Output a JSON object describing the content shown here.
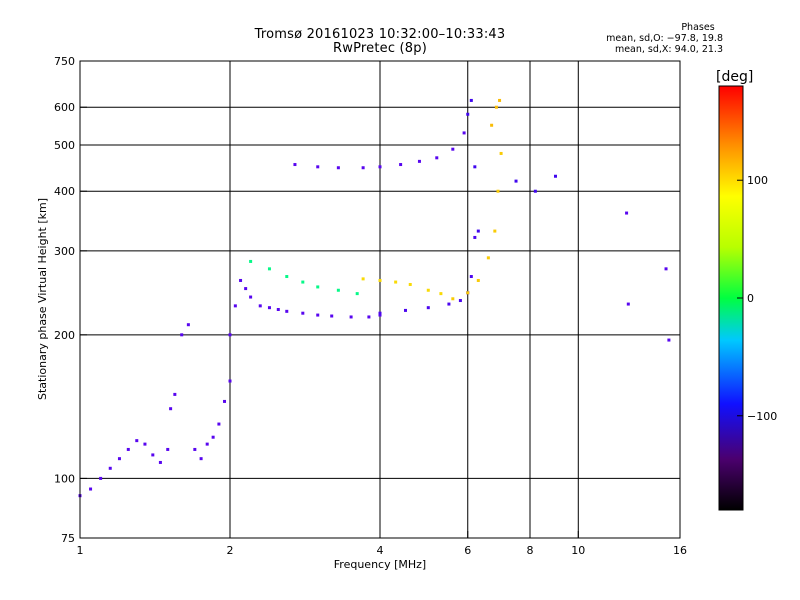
{
  "header": {
    "title_line1": "Tromsø 20161023 10:32:00–10:33:43",
    "title_line2": "RwPretec (8p)"
  },
  "stats": {
    "heading": "Phases",
    "line_o": "mean, sd,O: −97.8, 19.8",
    "line_x": "mean, sd,X:  94.0, 21.3"
  },
  "colorbar": {
    "unit": "[deg]",
    "tick_labels": [
      "100",
      "0",
      "−100"
    ],
    "tick_values": [
      100,
      0,
      -100
    ],
    "range": [
      -180,
      180
    ],
    "colormap": "rainbow"
  },
  "chart_data": {
    "type": "scatter",
    "title": "Tromsø 20161023 10:32:00–10:33:43",
    "subtitle": "RwPretec (8p)",
    "xlabel": "Frequency [MHz]",
    "ylabel": "Stationary phase Virtual Height [km]",
    "x_scale": "log",
    "y_scale": "log",
    "xlim": [
      1,
      16
    ],
    "ylim": [
      75,
      750
    ],
    "x_ticks": [
      1,
      2,
      4,
      6,
      8,
      10,
      16
    ],
    "x_tick_labels": [
      "1",
      "2",
      "4",
      "6",
      "8",
      "10",
      "16"
    ],
    "y_ticks": [
      75,
      100,
      200,
      300,
      400,
      500,
      600,
      750
    ],
    "y_tick_labels": [
      "75",
      "100",
      "200",
      "300",
      "400",
      "500",
      "600",
      "750"
    ],
    "grid": true,
    "color_encodes": "phase [deg]",
    "traces": [
      {
        "x": [
          1.0,
          1.05,
          1.1,
          1.15,
          1.2,
          1.25,
          1.3,
          1.35,
          1.4,
          1.45,
          1.5,
          1.52,
          1.55,
          1.6,
          1.65,
          1.7,
          1.75,
          1.8,
          1.85,
          1.9,
          1.95,
          2.0
        ],
        "y": [
          92,
          95,
          100,
          105,
          110,
          115,
          120,
          118,
          112,
          108,
          115,
          140,
          150,
          200,
          210,
          115,
          110,
          118,
          122,
          130,
          145,
          160
        ],
        "phase": -110
      },
      {
        "x": [
          2.0,
          2.05,
          2.1,
          2.15,
          2.2,
          2.3,
          2.4,
          2.5,
          2.6,
          2.8,
          3.0,
          3.2,
          3.5,
          3.8,
          4.0
        ],
        "y": [
          200,
          230,
          260,
          250,
          240,
          230,
          228,
          226,
          224,
          222,
          220,
          219,
          218,
          218,
          220
        ],
        "phase": -110
      },
      {
        "x": [
          2.2,
          2.4,
          2.6,
          2.8,
          3.0,
          3.3,
          3.6
        ],
        "y": [
          285,
          275,
          265,
          258,
          252,
          248,
          244
        ],
        "phase": -55
      },
      {
        "x": [
          4.0,
          4.5,
          5.0,
          5.5,
          5.8,
          6.0,
          6.1,
          6.2
        ],
        "y": [
          222,
          225,
          228,
          232,
          236,
          245,
          265,
          320
        ],
        "phase": -105
      },
      {
        "x": [
          3.7,
          4.0,
          4.3,
          4.6,
          5.0,
          5.3
        ],
        "y": [
          262,
          260,
          258,
          255,
          248,
          244
        ],
        "phase": 110
      },
      {
        "x": [
          2.7,
          3.0,
          3.3,
          3.7,
          4.0,
          4.4,
          4.8,
          5.2,
          5.6,
          5.9
        ],
        "y": [
          455,
          450,
          448,
          448,
          450,
          455,
          462,
          470,
          490,
          530
        ],
        "phase": -110
      },
      {
        "x": [
          6.0,
          6.1,
          6.2,
          6.3
        ],
        "y": [
          580,
          620,
          450,
          330
        ],
        "phase": -100
      },
      {
        "x": [
          5.6,
          6.0,
          6.3,
          6.6,
          6.8,
          6.9,
          7.0
        ],
        "y": [
          238,
          245,
          260,
          290,
          330,
          400,
          480
        ],
        "phase": 115
      },
      {
        "x": [
          6.7,
          6.85,
          6.95
        ],
        "y": [
          550,
          600,
          620
        ],
        "phase": 120
      },
      {
        "x": [
          7.5,
          8.2,
          9.0
        ],
        "y": [
          420,
          400,
          430
        ],
        "phase": -100
      },
      {
        "x": [
          12.5,
          12.6,
          15.0,
          15.2
        ],
        "y": [
          360,
          232,
          275,
          195
        ],
        "phase": -110
      }
    ]
  }
}
